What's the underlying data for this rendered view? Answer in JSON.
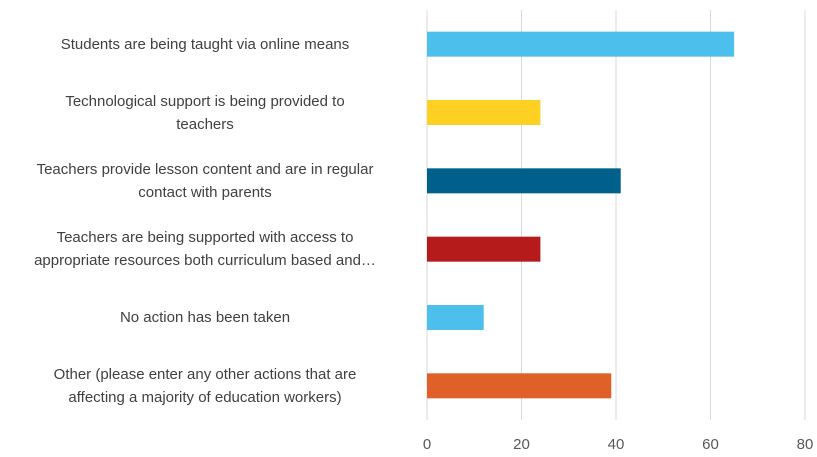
{
  "chart_data": {
    "type": "bar",
    "orientation": "horizontal",
    "title": "",
    "xlabel": "",
    "ylabel": "",
    "xlim": [
      0,
      80
    ],
    "x_ticks": [
      0,
      20,
      40,
      60,
      80
    ],
    "grid": "vertical",
    "legend": "none",
    "categories": [
      "Students are being taught via online means",
      "Technological support is being provided to\nteachers",
      "Teachers provide lesson content and are in regular\ncontact with parents",
      "Teachers are being supported with access to\nappropriate resources both curriculum based and…",
      "No action has been taken",
      "Other (please enter any other actions that are\naffecting a majority of education workers)"
    ],
    "values": [
      65,
      24,
      41,
      24,
      12,
      39
    ],
    "colors": [
      "#4dbfec",
      "#fdd022",
      "#005f8b",
      "#b51b1b",
      "#4dbfec",
      "#e0602a"
    ]
  }
}
